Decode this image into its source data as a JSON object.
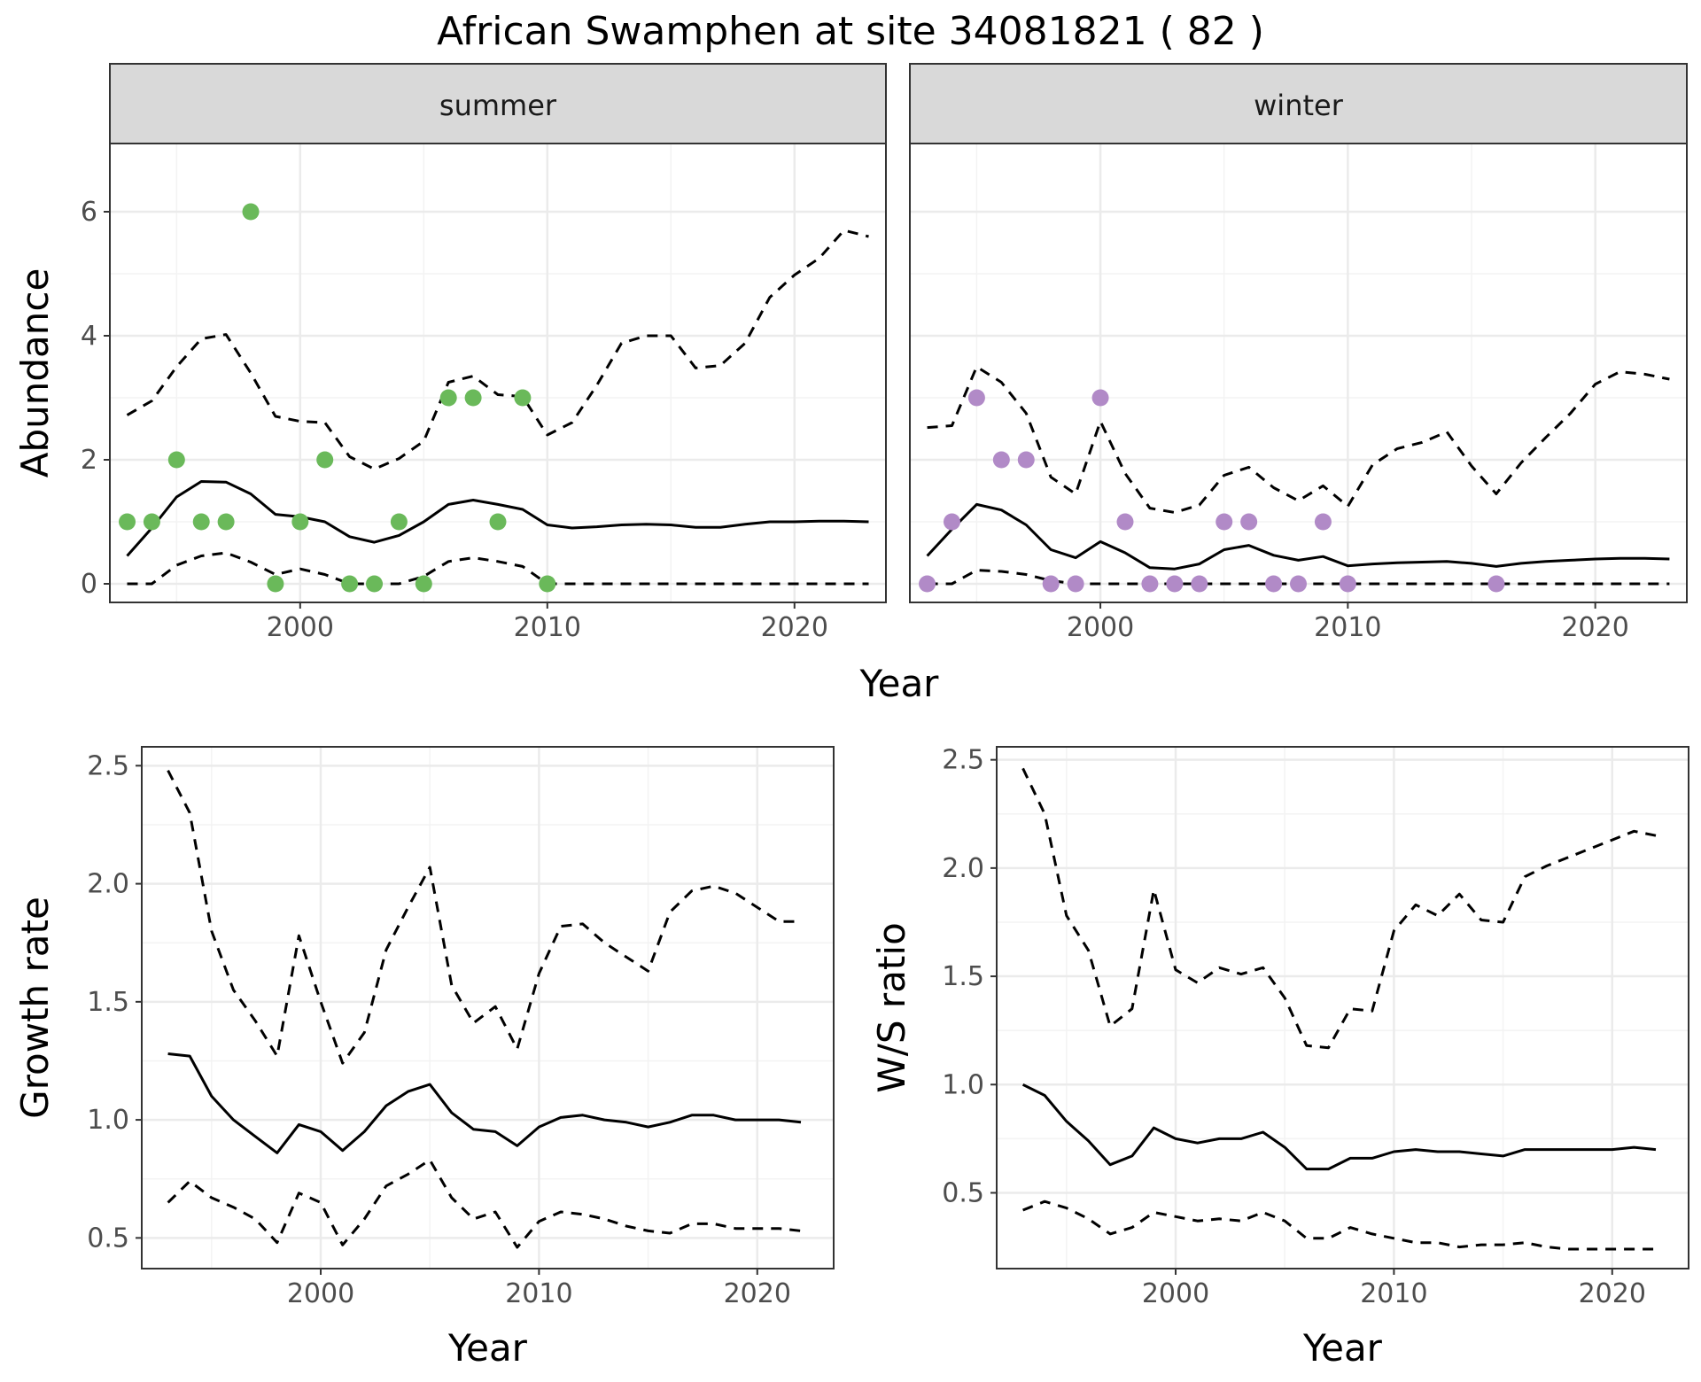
{
  "chart_data": {
    "type": "faceted-line-scatter",
    "title": "African Swamphen at site 34081821 ( 82 )",
    "colors": {
      "summer_points": "#6ab95a",
      "winter_points": "#b18ac7",
      "lines": "#000000",
      "strip_fill": "#d9d9d9",
      "grid": "#ebebeb"
    },
    "panels": [
      {
        "id": "summer",
        "strip_label": "summer",
        "xlabel": "",
        "ylabel": "Abundance",
        "xlim": [
          1992.3,
          2023.7
        ],
        "ylim": [
          -0.3,
          7.1
        ],
        "x_ticks": [
          2000,
          2010,
          2020
        ],
        "y_ticks": [
          0,
          2,
          4,
          6
        ],
        "grid": true,
        "points": {
          "color": "#6ab95a",
          "x": [
            1993,
            1994,
            1995,
            1996,
            1997,
            1998,
            1999,
            2000,
            2001,
            2002,
            2003,
            2004,
            2005,
            2006,
            2007,
            2008,
            2009,
            2010
          ],
          "y": [
            1,
            1,
            2,
            1,
            1,
            6,
            0,
            1,
            2,
            0,
            0,
            1,
            0,
            3,
            3,
            1,
            3,
            0
          ]
        },
        "lines": [
          {
            "style": "solid",
            "x": [
              1993,
              1994,
              1995,
              1996,
              1997,
              1998,
              1999,
              2000,
              2001,
              2002,
              2003,
              2004,
              2005,
              2006,
              2007,
              2008,
              2009,
              2010,
              2011,
              2012,
              2013,
              2014,
              2015,
              2016,
              2017,
              2018,
              2019,
              2020,
              2021,
              2022,
              2023
            ],
            "y": [
              0.45,
              0.9,
              1.4,
              1.65,
              1.64,
              1.45,
              1.12,
              1.08,
              1.0,
              0.76,
              0.67,
              0.78,
              1.0,
              1.28,
              1.35,
              1.28,
              1.2,
              0.95,
              0.9,
              0.92,
              0.95,
              0.96,
              0.95,
              0.91,
              0.91,
              0.96,
              1.0,
              1.0,
              1.01,
              1.01,
              1.0
            ]
          },
          {
            "style": "dashed",
            "x": [
              1993,
              1994,
              1995,
              1996,
              1997,
              1998,
              1999,
              2000,
              2001,
              2002,
              2003,
              2004,
              2005,
              2006,
              2007,
              2008,
              2009,
              2010,
              2011,
              2012,
              2013,
              2014,
              2015,
              2016,
              2017,
              2018,
              2019,
              2020,
              2021,
              2022,
              2023
            ],
            "y": [
              2.72,
              2.95,
              3.5,
              3.95,
              4.02,
              3.4,
              2.7,
              2.62,
              2.6,
              2.05,
              1.85,
              2.02,
              2.3,
              3.25,
              3.35,
              3.05,
              3.02,
              2.4,
              2.6,
              3.2,
              3.88,
              4.0,
              4.0,
              3.48,
              3.52,
              3.88,
              4.62,
              4.98,
              5.25,
              5.7,
              5.6
            ]
          },
          {
            "style": "dashed",
            "x": [
              1993,
              1994,
              1995,
              1996,
              1997,
              1998,
              1999,
              2000,
              2001,
              2002,
              2003,
              2004,
              2005,
              2006,
              2007,
              2008,
              2009,
              2010,
              2011,
              2012,
              2013,
              2014,
              2015,
              2016,
              2017,
              2018,
              2019,
              2020,
              2021,
              2022,
              2023
            ],
            "y": [
              0,
              0,
              0.3,
              0.45,
              0.5,
              0.35,
              0.15,
              0.24,
              0.15,
              0,
              0,
              0,
              0.12,
              0.36,
              0.42,
              0.36,
              0.28,
              0,
              0,
              0,
              0,
              0,
              0,
              0,
              0,
              0,
              0,
              0,
              0,
              0,
              0
            ]
          }
        ]
      },
      {
        "id": "winter",
        "strip_label": "winter",
        "xlabel": "",
        "ylabel": "",
        "xlim": [
          1992.3,
          2023.7
        ],
        "ylim": [
          -0.3,
          7.1
        ],
        "x_ticks": [
          2000,
          2010,
          2020
        ],
        "y_ticks": [
          0,
          2,
          4,
          6
        ],
        "grid": true,
        "points": {
          "color": "#b18ac7",
          "x": [
            1993,
            1994,
            1995,
            1996,
            1997,
            1998,
            1999,
            2000,
            2001,
            2002,
            2003,
            2004,
            2005,
            2006,
            2007,
            2008,
            2009,
            2010,
            2016
          ],
          "y": [
            0,
            1,
            3,
            2,
            2,
            0,
            0,
            3,
            1,
            0,
            0,
            0,
            1,
            1,
            0,
            0,
            1,
            0,
            0
          ]
        },
        "lines": [
          {
            "style": "solid",
            "x": [
              1993,
              1994,
              1995,
              1996,
              1997,
              1998,
              1999,
              2000,
              2001,
              2002,
              2003,
              2004,
              2005,
              2006,
              2007,
              2008,
              2009,
              2010,
              2011,
              2012,
              2013,
              2014,
              2015,
              2016,
              2017,
              2018,
              2019,
              2020,
              2021,
              2022,
              2023
            ],
            "y": [
              0.45,
              0.88,
              1.28,
              1.19,
              0.95,
              0.55,
              0.42,
              0.68,
              0.5,
              0.26,
              0.24,
              0.32,
              0.55,
              0.62,
              0.46,
              0.38,
              0.44,
              0.29,
              0.32,
              0.34,
              0.35,
              0.36,
              0.33,
              0.28,
              0.33,
              0.36,
              0.38,
              0.4,
              0.41,
              0.41,
              0.4
            ]
          },
          {
            "style": "dashed",
            "x": [
              1993,
              1994,
              1995,
              1996,
              1997,
              1998,
              1999,
              2000,
              2001,
              2002,
              2003,
              2004,
              2005,
              2006,
              2007,
              2008,
              2009,
              2010,
              2011,
              2012,
              2013,
              2014,
              2015,
              2016,
              2017,
              2018,
              2019,
              2020,
              2021,
              2022,
              2023
            ],
            "y": [
              2.52,
              2.55,
              3.5,
              3.25,
              2.75,
              1.72,
              1.45,
              2.62,
              1.78,
              1.22,
              1.15,
              1.27,
              1.75,
              1.88,
              1.55,
              1.34,
              1.58,
              1.25,
              1.92,
              2.18,
              2.28,
              2.45,
              1.9,
              1.45,
              1.95,
              2.36,
              2.75,
              3.22,
              3.42,
              3.38,
              3.3
            ]
          },
          {
            "style": "dashed",
            "x": [
              1993,
              1994,
              1995,
              1996,
              1997,
              1998,
              1999,
              2000,
              2001,
              2002,
              2003,
              2004,
              2005,
              2006,
              2007,
              2008,
              2009,
              2010,
              2011,
              2012,
              2013,
              2014,
              2015,
              2016,
              2017,
              2018,
              2019,
              2020,
              2021,
              2022,
              2023
            ],
            "y": [
              0,
              0,
              0.22,
              0.2,
              0.15,
              0.05,
              0,
              0,
              0,
              0,
              0,
              0,
              0,
              0,
              0,
              0,
              0,
              0,
              0,
              0,
              0,
              0,
              0,
              0,
              0,
              0,
              0,
              0,
              0,
              0,
              0
            ]
          }
        ]
      },
      {
        "id": "growth",
        "strip_label": "",
        "xlabel": "Year",
        "ylabel": "Growth rate",
        "xlim": [
          1991.8,
          2023.5
        ],
        "ylim": [
          0.37,
          2.58
        ],
        "x_ticks": [
          2000,
          2010,
          2020
        ],
        "y_ticks": [
          0.5,
          1.0,
          1.5,
          2.0,
          2.5
        ],
        "grid": true,
        "lines": [
          {
            "style": "solid",
            "x": [
              1993,
              1994,
              1995,
              1996,
              1997,
              1998,
              1999,
              2000,
              2001,
              2002,
              2003,
              2004,
              2005,
              2006,
              2007,
              2008,
              2009,
              2010,
              2011,
              2012,
              2013,
              2014,
              2015,
              2016,
              2017,
              2018,
              2019,
              2020,
              2021,
              2022
            ],
            "y": [
              1.28,
              1.27,
              1.1,
              1.0,
              0.93,
              0.86,
              0.98,
              0.95,
              0.87,
              0.95,
              1.06,
              1.12,
              1.15,
              1.03,
              0.96,
              0.95,
              0.89,
              0.97,
              1.01,
              1.02,
              1.0,
              0.99,
              0.97,
              0.99,
              1.02,
              1.02,
              1.0,
              1.0,
              1.0,
              0.99
            ]
          },
          {
            "style": "dashed",
            "x": [
              1993,
              1994,
              1995,
              1996,
              1997,
              1998,
              1999,
              2000,
              2001,
              2002,
              2003,
              2004,
              2005,
              2006,
              2007,
              2008,
              2009,
              2010,
              2011,
              2012,
              2013,
              2014,
              2015,
              2016,
              2017,
              2018,
              2019,
              2020,
              2021,
              2022
            ],
            "y": [
              2.48,
              2.3,
              1.8,
              1.55,
              1.42,
              1.27,
              1.78,
              1.5,
              1.24,
              1.37,
              1.72,
              1.9,
              2.07,
              1.57,
              1.41,
              1.48,
              1.3,
              1.62,
              1.82,
              1.83,
              1.75,
              1.69,
              1.63,
              1.88,
              1.97,
              1.99,
              1.96,
              1.9,
              1.84,
              1.84
            ]
          },
          {
            "style": "dashed",
            "x": [
              1993,
              1994,
              1995,
              1996,
              1997,
              1998,
              1999,
              2000,
              2001,
              2002,
              2003,
              2004,
              2005,
              2006,
              2007,
              2008,
              2009,
              2010,
              2011,
              2012,
              2013,
              2014,
              2015,
              2016,
              2017,
              2018,
              2019,
              2020,
              2021,
              2022
            ],
            "y": [
              0.65,
              0.74,
              0.67,
              0.63,
              0.58,
              0.48,
              0.69,
              0.65,
              0.47,
              0.58,
              0.72,
              0.77,
              0.83,
              0.67,
              0.58,
              0.61,
              0.46,
              0.57,
              0.61,
              0.6,
              0.58,
              0.55,
              0.53,
              0.52,
              0.56,
              0.56,
              0.54,
              0.54,
              0.54,
              0.53
            ]
          }
        ]
      },
      {
        "id": "ratio",
        "strip_label": "",
        "xlabel": "Year",
        "ylabel": "W/S ratio",
        "xlim": [
          1991.8,
          2023.5
        ],
        "ylim": [
          0.15,
          2.56
        ],
        "x_ticks": [
          2000,
          2010,
          2020
        ],
        "y_ticks": [
          0.5,
          1.0,
          1.5,
          2.0,
          2.5
        ],
        "grid": true,
        "lines": [
          {
            "style": "solid",
            "x": [
              1993,
              1994,
              1995,
              1996,
              1997,
              1998,
              1999,
              2000,
              2001,
              2002,
              2003,
              2004,
              2005,
              2006,
              2007,
              2008,
              2009,
              2010,
              2011,
              2012,
              2013,
              2014,
              2015,
              2016,
              2017,
              2018,
              2019,
              2020,
              2021,
              2022
            ],
            "y": [
              1.0,
              0.95,
              0.83,
              0.74,
              0.63,
              0.67,
              0.8,
              0.75,
              0.73,
              0.75,
              0.75,
              0.78,
              0.71,
              0.61,
              0.61,
              0.66,
              0.66,
              0.69,
              0.7,
              0.69,
              0.69,
              0.68,
              0.67,
              0.7,
              0.7,
              0.7,
              0.7,
              0.7,
              0.71,
              0.7
            ]
          },
          {
            "style": "dashed",
            "x": [
              1993,
              1994,
              1995,
              1996,
              1997,
              1998,
              1999,
              2000,
              2001,
              2002,
              2003,
              2004,
              2005,
              2006,
              2007,
              2008,
              2009,
              2010,
              2011,
              2012,
              2013,
              2014,
              2015,
              2016,
              2017,
              2018,
              2019,
              2020,
              2021,
              2022
            ],
            "y": [
              2.46,
              2.25,
              1.78,
              1.62,
              1.27,
              1.35,
              1.9,
              1.53,
              1.47,
              1.54,
              1.51,
              1.54,
              1.4,
              1.18,
              1.17,
              1.35,
              1.34,
              1.71,
              1.83,
              1.78,
              1.88,
              1.76,
              1.75,
              1.96,
              2.01,
              2.05,
              2.09,
              2.13,
              2.17,
              2.15
            ]
          },
          {
            "style": "dashed",
            "x": [
              1993,
              1994,
              1995,
              1996,
              1997,
              1998,
              1999,
              2000,
              2001,
              2002,
              2003,
              2004,
              2005,
              2006,
              2007,
              2008,
              2009,
              2010,
              2011,
              2012,
              2013,
              2014,
              2015,
              2016,
              2017,
              2018,
              2019,
              2020,
              2021,
              2022
            ],
            "y": [
              0.42,
              0.46,
              0.43,
              0.38,
              0.31,
              0.34,
              0.41,
              0.39,
              0.37,
              0.38,
              0.37,
              0.41,
              0.37,
              0.29,
              0.29,
              0.34,
              0.31,
              0.29,
              0.27,
              0.27,
              0.25,
              0.26,
              0.26,
              0.27,
              0.25,
              0.24,
              0.24,
              0.24,
              0.24,
              0.24
            ]
          }
        ]
      }
    ],
    "shared_xlabel_top": "Year"
  }
}
